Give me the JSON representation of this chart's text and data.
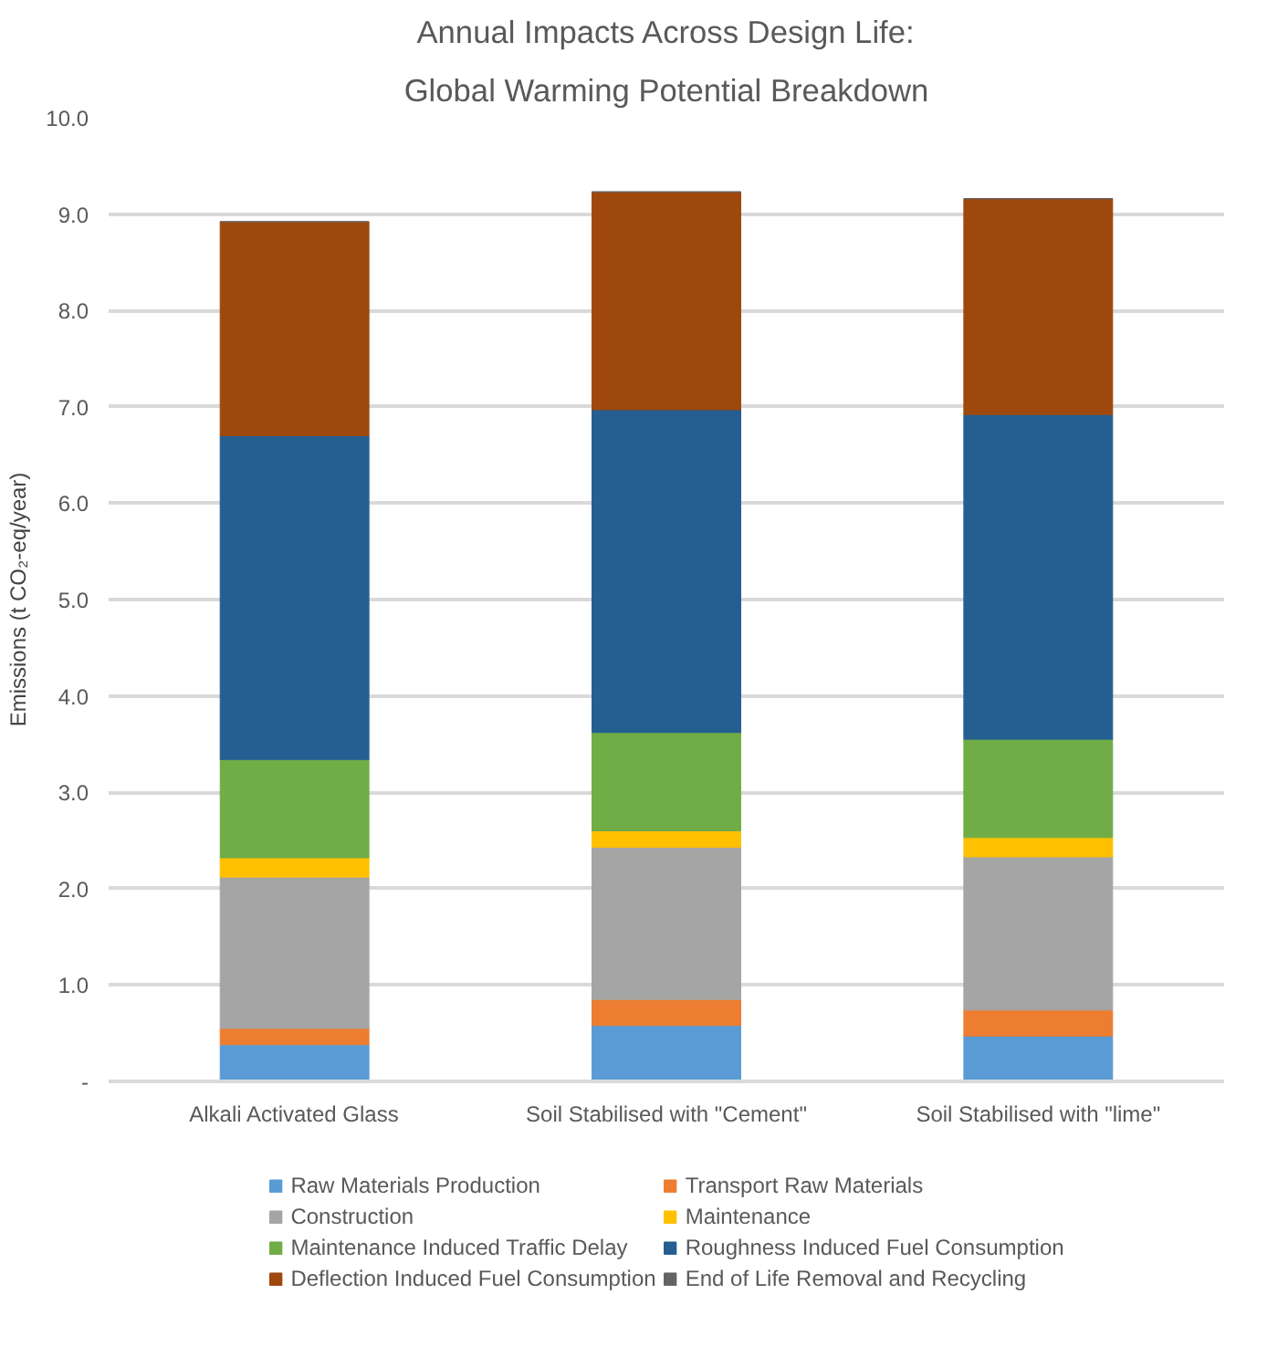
{
  "chart_data": {
    "type": "bar",
    "stacked": true,
    "title": "Annual Impacts Across Design Life:",
    "subtitle": "Global Warming Potential Breakdown",
    "ylabel": "Emissions (t CO₂-eq/year)",
    "categories": [
      "Alkali Activated Glass",
      "Soil Stabilised with \"Cement\"",
      "Soil Stabilised with \"lime\""
    ],
    "ylim": [
      0,
      10
    ],
    "yticks": [
      {
        "value": 0,
        "label": "-"
      },
      {
        "value": 1,
        "label": "1.0"
      },
      {
        "value": 2,
        "label": "2.0"
      },
      {
        "value": 3,
        "label": "3.0"
      },
      {
        "value": 4,
        "label": "4.0"
      },
      {
        "value": 5,
        "label": "5.0"
      },
      {
        "value": 6,
        "label": "6.0"
      },
      {
        "value": 7,
        "label": "7.0"
      },
      {
        "value": 8,
        "label": "8.0"
      },
      {
        "value": 9,
        "label": "9.0"
      },
      {
        "value": 10,
        "label": "10.0"
      }
    ],
    "grid": "y",
    "legend": "bottom",
    "series": [
      {
        "name": "Raw Materials Production",
        "color": "#5b9bd5",
        "values": [
          0.38,
          0.58,
          0.47
        ]
      },
      {
        "name": "Transport Raw Materials",
        "color": "#ed7d31",
        "values": [
          0.17,
          0.27,
          0.27
        ]
      },
      {
        "name": "Construction",
        "color": "#a5a5a5",
        "values": [
          1.57,
          1.58,
          1.59
        ]
      },
      {
        "name": "Maintenance",
        "color": "#ffc000",
        "values": [
          0.2,
          0.17,
          0.2
        ]
      },
      {
        "name": "Maintenance Induced Traffic Delay",
        "color": "#70ad47",
        "values": [
          1.02,
          1.02,
          1.02
        ]
      },
      {
        "name": "Roughness Induced Fuel Consumption",
        "color": "#255e91",
        "values": [
          3.36,
          3.35,
          3.37
        ]
      },
      {
        "name": "Deflection Induced Fuel Consumption",
        "color": "#9e480e",
        "values": [
          2.22,
          2.26,
          2.24
        ]
      },
      {
        "name": "End of Life Removal and Recycling",
        "color": "#636363",
        "values": [
          0,
          0,
          0
        ]
      }
    ]
  }
}
